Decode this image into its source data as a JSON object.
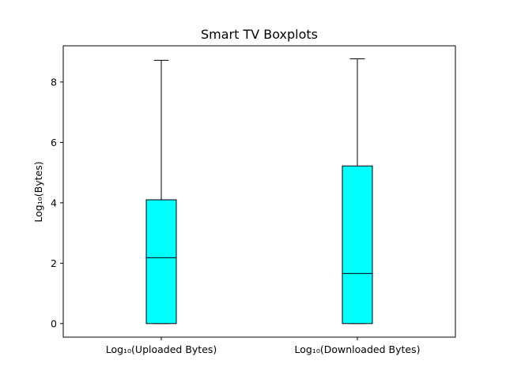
{
  "chart_data": {
    "type": "box",
    "title": "Smart TV Boxplots",
    "xlabel": "",
    "ylabel": "Log₁₀(Bytes)",
    "ylim": [
      -0.45,
      9.2
    ],
    "yticks": [
      0,
      2,
      4,
      6,
      8
    ],
    "grid": false,
    "box_color": "#00ffff",
    "line_color": "#000000",
    "categories": [
      "Log₁₀(Uploaded Bytes)",
      "Log₁₀(Downloaded Bytes)"
    ],
    "boxes": [
      {
        "min": 0,
        "q1": 0,
        "median": 2.18,
        "q3": 4.1,
        "max": 8.72
      },
      {
        "min": 0,
        "q1": 0,
        "median": 1.66,
        "q3": 5.22,
        "max": 8.77
      }
    ]
  }
}
